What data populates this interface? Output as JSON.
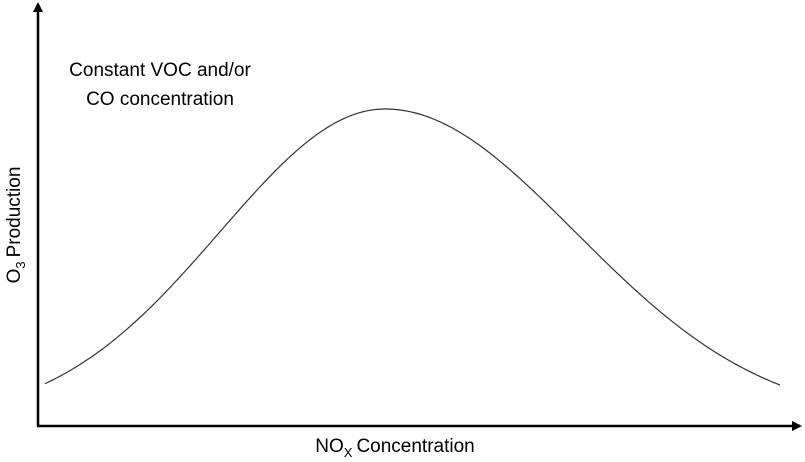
{
  "annotation": [
    "Constant VOC and/or",
    "CO concentration"
  ],
  "y_axis": {
    "label": [
      "O",
      "3",
      "Production"
    ]
  },
  "x_axis": {
    "label": [
      "NO",
      "X",
      "Concentration"
    ]
  }
}
